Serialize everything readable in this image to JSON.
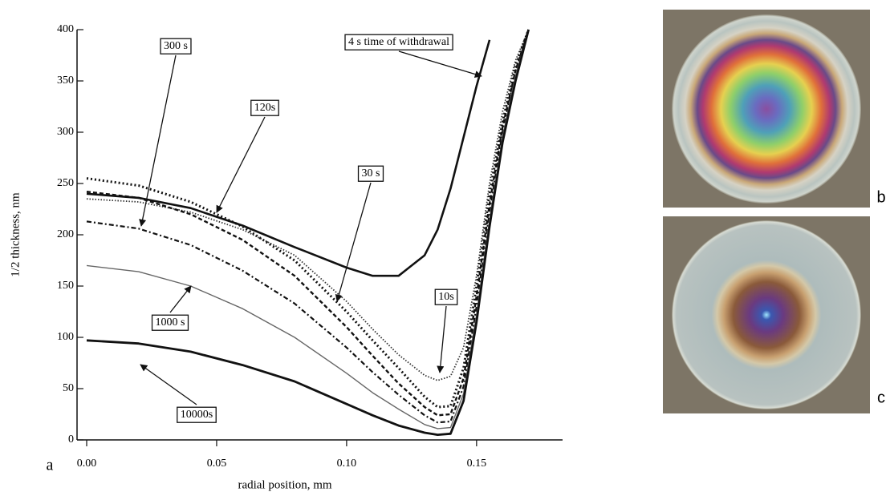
{
  "chart_data": {
    "type": "line",
    "x_label": "radial position, mm",
    "y_label": "1/2 thickness, nm",
    "panel_labels": [
      "a",
      "b",
      "c"
    ],
    "xlim": [
      0,
      0.18
    ],
    "ylim": [
      0,
      400
    ],
    "xticks": [
      {
        "value": 0,
        "label": "0.00"
      },
      0.05,
      {
        "value": 0.1,
        "label": "0.10"
      },
      0.15
    ],
    "yticks": [
      0,
      50,
      100,
      150,
      200,
      250,
      300,
      350,
      400
    ],
    "x": [
      0,
      0.02,
      0.04,
      0.06,
      0.08,
      0.1,
      0.11,
      0.12,
      0.13,
      0.135,
      0.14,
      0.145,
      0.15,
      0.155,
      0.16,
      0.165,
      0.17
    ],
    "series": [
      {
        "name": "4 s time of withdrawal",
        "color": "#111111",
        "values": [
          240,
          236,
          226,
          209,
          188,
          168,
          160,
          160,
          180,
          205,
          245,
          295,
          345,
          390,
          null,
          null,
          null
        ]
      },
      {
        "name": "10s",
        "color": "#333333",
        "values": [
          235,
          232,
          222,
          205,
          180,
          135,
          108,
          83,
          63,
          58,
          62,
          90,
          160,
          250,
          320,
          370,
          400
        ]
      },
      {
        "name": "30 s",
        "color": "#111111",
        "values": [
          255,
          248,
          232,
          208,
          175,
          125,
          97,
          70,
          42,
          32,
          33,
          70,
          150,
          240,
          310,
          365,
          400
        ]
      },
      {
        "name": "120s",
        "color": "#111111",
        "values": [
          242,
          236,
          220,
          195,
          160,
          110,
          82,
          55,
          32,
          24,
          25,
          60,
          140,
          230,
          305,
          360,
          400
        ]
      },
      {
        "name": "300 s",
        "color": "#111111",
        "values": [
          213,
          206,
          190,
          165,
          133,
          90,
          66,
          44,
          24,
          17,
          18,
          52,
          130,
          222,
          300,
          358,
          400
        ]
      },
      {
        "name": "1000 s",
        "color": "#666666",
        "values": [
          170,
          164,
          150,
          128,
          100,
          65,
          46,
          30,
          15,
          11,
          12,
          45,
          122,
          215,
          295,
          355,
          400
        ]
      },
      {
        "name": "10000s",
        "color": "#111111",
        "values": [
          97,
          94,
          86,
          73,
          57,
          35,
          24,
          14,
          7,
          5,
          6,
          38,
          115,
          208,
          290,
          350,
          400
        ]
      }
    ]
  }
}
